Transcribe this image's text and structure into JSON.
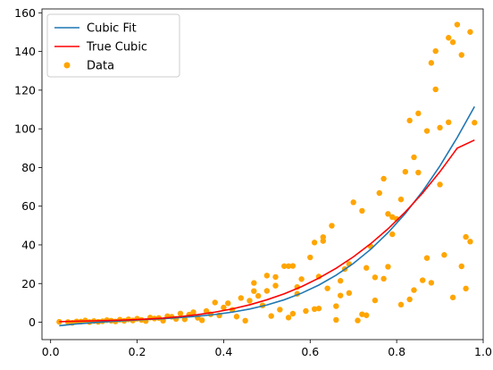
{
  "chart_data": {
    "type": "scatter",
    "xlim": [
      -0.02,
      1.0
    ],
    "ylim": [
      -9,
      162
    ],
    "x_ticks": [
      0.0,
      0.2,
      0.4,
      0.6,
      0.8,
      1.0
    ],
    "x_tick_labels": [
      "0.0",
      "0.2",
      "0.4",
      "0.6",
      "0.8",
      "1.0"
    ],
    "y_ticks": [
      0,
      20,
      40,
      60,
      80,
      100,
      120,
      140,
      160
    ],
    "y_tick_labels": [
      "0",
      "20",
      "40",
      "60",
      "80",
      "100",
      "120",
      "140",
      "160"
    ],
    "grid": false,
    "legend_position": "top-left",
    "series": [
      {
        "name": "Cubic Fit",
        "kind": "line",
        "color": "#1f77b4",
        "x": [
          0.02,
          0.06,
          0.1,
          0.14,
          0.18,
          0.22,
          0.26,
          0.3,
          0.34,
          0.38,
          0.42,
          0.46,
          0.5,
          0.54,
          0.58,
          0.62,
          0.66,
          0.7,
          0.74,
          0.78,
          0.82,
          0.86,
          0.9,
          0.94,
          0.98
        ],
        "y": [
          -1.8,
          -0.9,
          -0.2,
          0.4,
          0.9,
          1.4,
          1.8,
          2.4,
          3.1,
          4.0,
          5.2,
          6.8,
          8.9,
          11.6,
          15.0,
          19.2,
          24.3,
          30.4,
          37.7,
          46.3,
          56.2,
          67.7,
          80.8,
          95.5,
          111.5
        ]
      },
      {
        "name": "True Cubic",
        "kind": "line",
        "color": "#ff0000",
        "x": [
          0.02,
          0.06,
          0.1,
          0.14,
          0.18,
          0.22,
          0.26,
          0.3,
          0.34,
          0.38,
          0.42,
          0.46,
          0.5,
          0.54,
          0.58,
          0.62,
          0.66,
          0.7,
          0.74,
          0.78,
          0.82,
          0.86,
          0.9,
          0.94,
          0.98
        ],
        "y": [
          0.3,
          0.5,
          0.7,
          0.9,
          1.2,
          1.6,
          2.1,
          2.9,
          3.9,
          5.2,
          6.9,
          9.0,
          11.6,
          14.7,
          18.4,
          22.8,
          27.9,
          33.8,
          40.6,
          48.3,
          57.0,
          66.8,
          77.8,
          90.0,
          94.2
        ]
      },
      {
        "name": "Data",
        "kind": "scatter",
        "color": "#ffa500",
        "x": [
          0.02,
          0.04,
          0.05,
          0.06,
          0.07,
          0.08,
          0.09,
          0.1,
          0.11,
          0.12,
          0.13,
          0.14,
          0.15,
          0.16,
          0.17,
          0.18,
          0.19,
          0.2,
          0.21,
          0.22,
          0.23,
          0.24,
          0.25,
          0.26,
          0.27,
          0.28,
          0.29,
          0.3,
          0.31,
          0.32,
          0.33,
          0.34,
          0.35,
          0.36,
          0.37,
          0.38,
          0.39,
          0.4,
          0.41,
          0.42,
          0.43,
          0.44,
          0.45,
          0.46,
          0.47,
          0.48,
          0.49,
          0.5,
          0.51,
          0.52,
          0.53,
          0.54,
          0.55,
          0.56,
          0.57,
          0.58,
          0.59,
          0.6,
          0.61,
          0.62,
          0.63,
          0.64,
          0.65,
          0.66,
          0.67,
          0.68,
          0.69,
          0.7,
          0.71,
          0.72,
          0.73,
          0.74,
          0.75,
          0.76,
          0.77,
          0.78,
          0.79,
          0.8,
          0.81,
          0.82,
          0.83,
          0.84,
          0.85,
          0.86,
          0.87,
          0.88,
          0.89,
          0.9,
          0.91,
          0.92,
          0.93,
          0.94,
          0.95,
          0.96,
          0.97,
          0.98,
          0.47,
          0.52,
          0.55,
          0.57,
          0.61,
          0.63,
          0.66,
          0.69,
          0.72,
          0.75,
          0.77,
          0.79,
          0.81,
          0.83,
          0.85,
          0.87,
          0.88,
          0.9,
          0.92,
          0.95,
          0.96,
          0.97,
          0.5,
          0.56,
          0.62,
          0.67,
          0.73,
          0.78,
          0.84,
          0.89,
          0.93
        ],
        "y": [
          0.2,
          0.1,
          -0.3,
          0.4,
          0.3,
          0.9,
          0.1,
          0.6,
          0.2,
          0.5,
          1.1,
          0.8,
          0.4,
          1.3,
          0.7,
          1.5,
          0.9,
          1.8,
          1.2,
          0.6,
          2.4,
          1.9,
          2.2,
          0.8,
          3.1,
          2.8,
          1.7,
          4.5,
          1.5,
          3.9,
          5.2,
          2.3,
          1.0,
          5.8,
          4.1,
          10.2,
          3.5,
          7.6,
          9.8,
          6.4,
          2.9,
          12.5,
          0.8,
          11.1,
          20.3,
          13.6,
          8.7,
          24.1,
          3.2,
          18.9,
          6.5,
          29.0,
          2.4,
          29.1,
          14.7,
          22.3,
          5.8,
          33.5,
          41.2,
          7.1,
          44.0,
          17.5,
          49.9,
          1.2,
          21.4,
          27.5,
          30.1,
          62.0,
          0.9,
          57.6,
          3.6,
          39.2,
          11.3,
          66.8,
          74.2,
          28.7,
          45.5,
          53.4,
          9.1,
          77.8,
          104.3,
          16.6,
          108.0,
          21.7,
          98.9,
          20.4,
          120.4,
          71.2,
          34.8,
          147.1,
          144.8,
          153.9,
          138.2,
          17.4,
          150.1,
          103.2,
          16.1,
          23.4,
          29.0,
          18.2,
          6.8,
          42.0,
          8.3,
          15.1,
          4.1,
          23.2,
          22.5,
          54.4,
          63.5,
          11.8,
          77.4,
          33.2,
          134.1,
          100.6,
          103.4,
          28.9,
          44.1,
          41.7,
          16.2,
          4.4,
          23.6,
          13.8,
          28.1,
          56.0,
          85.3,
          140.2,
          12.8
        ]
      }
    ]
  }
}
